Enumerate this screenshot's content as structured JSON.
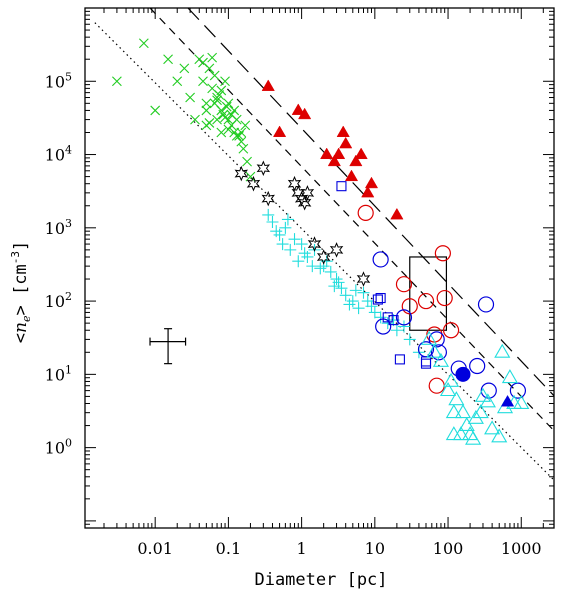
{
  "chart_data": {
    "type": "scatter",
    "title": "",
    "xlabel": "Diameter [pc]",
    "ylabel": {
      "prefix": "<",
      "symbol": "n",
      "subscript": "e",
      "suffix": ">",
      "units": "[cm",
      "exponent": "-3",
      "units_close": "]"
    },
    "xscale": "log",
    "yscale": "log",
    "xlim": [
      0.0011,
      2800
    ],
    "ylim": [
      0.08,
      1000000
    ],
    "x_ticks": [
      {
        "value": 0.01,
        "label": "0.01"
      },
      {
        "value": 0.1,
        "label": "0.1"
      },
      {
        "value": 1,
        "label": "1"
      },
      {
        "value": 10,
        "label": "10"
      },
      {
        "value": 100,
        "label": "100"
      },
      {
        "value": 1000,
        "label": "1000"
      }
    ],
    "y_ticks": [
      {
        "value": 1,
        "base": "10",
        "exp": "0"
      },
      {
        "value": 10,
        "base": "10",
        "exp": "1"
      },
      {
        "value": 100,
        "base": "10",
        "exp": "2"
      },
      {
        "value": 1000,
        "base": "10",
        "exp": "3"
      },
      {
        "value": 10000,
        "base": "10",
        "exp": "4"
      },
      {
        "value": 100000,
        "base": "10",
        "exp": "5"
      }
    ],
    "lines": [
      {
        "style": "long-dash",
        "points": [
          [
            0.028,
            1000000
          ],
          [
            2800,
            5.1
          ]
        ]
      },
      {
        "style": "dash",
        "points": [
          [
            0.0085,
            1000000
          ],
          [
            2800,
            1.7
          ]
        ]
      },
      {
        "style": "dotted",
        "points": [
          [
            0.0015,
            630000
          ],
          [
            2800,
            0.36
          ]
        ]
      }
    ],
    "box": {
      "x": [
        30,
        95
      ],
      "y": [
        40,
        400
      ]
    },
    "error_bar": {
      "x": 0.015,
      "y": 28,
      "x_range": [
        0.0085,
        0.026
      ],
      "y_range": [
        14,
        42
      ]
    },
    "series": [
      {
        "marker": "x",
        "color": "#22cc22",
        "points": [
          [
            0.003,
            100000
          ],
          [
            0.007,
            330000
          ],
          [
            0.01,
            40000
          ],
          [
            0.015,
            200000
          ],
          [
            0.02,
            100000
          ],
          [
            0.025,
            150000
          ],
          [
            0.03,
            60000
          ],
          [
            0.035,
            30000
          ],
          [
            0.04,
            200000
          ],
          [
            0.045,
            100000
          ],
          [
            0.05,
            40000
          ],
          [
            0.05,
            25000
          ],
          [
            0.055,
            150000
          ],
          [
            0.06,
            80000
          ],
          [
            0.065,
            50000
          ],
          [
            0.07,
            60000
          ],
          [
            0.07,
            30000
          ],
          [
            0.08,
            40000
          ],
          [
            0.08,
            20000
          ],
          [
            0.09,
            100000
          ],
          [
            0.1,
            50000
          ],
          [
            0.1,
            30000
          ],
          [
            0.11,
            25000
          ],
          [
            0.12,
            40000
          ],
          [
            0.13,
            30000
          ],
          [
            0.15,
            20000
          ],
          [
            0.15,
            15000
          ],
          [
            0.17,
            25000
          ],
          [
            0.18,
            8000
          ],
          [
            0.06,
            210000
          ],
          [
            0.045,
            180000
          ],
          [
            0.07,
            55000
          ],
          [
            0.085,
            35000
          ],
          [
            0.095,
            45000
          ],
          [
            0.12,
            20000
          ],
          [
            0.14,
            18000
          ],
          [
            0.16,
            12000
          ],
          [
            0.2,
            5000
          ],
          [
            0.1,
            22000
          ],
          [
            0.055,
            27000
          ],
          [
            0.075,
            65000
          ],
          [
            0.065,
            120000
          ],
          [
            0.09,
            32000
          ],
          [
            0.11,
            35000
          ],
          [
            0.05,
            50000
          ],
          [
            0.08,
            75000
          ],
          [
            0.13,
            18000
          ]
        ]
      },
      {
        "marker": "plus",
        "color": "#22dddd",
        "points": [
          [
            0.35,
            1500
          ],
          [
            0.4,
            1200
          ],
          [
            0.5,
            800
          ],
          [
            0.6,
            1000
          ],
          [
            0.7,
            500
          ],
          [
            0.8,
            700
          ],
          [
            1,
            600
          ],
          [
            1.2,
            400
          ],
          [
            1.5,
            500
          ],
          [
            2,
            300
          ],
          [
            2.5,
            250
          ],
          [
            3,
            200
          ],
          [
            3.5,
            150
          ],
          [
            4,
            120
          ],
          [
            5,
            100
          ],
          [
            6,
            80
          ],
          [
            8,
            100
          ],
          [
            10,
            70
          ],
          [
            15,
            50
          ],
          [
            20,
            40
          ],
          [
            25,
            45
          ],
          [
            30,
            30
          ],
          [
            40,
            20
          ],
          [
            0.45,
            900
          ],
          [
            0.55,
            600
          ],
          [
            0.9,
            350
          ],
          [
            1.1,
            450
          ],
          [
            1.8,
            280
          ],
          [
            2.2,
            350
          ],
          [
            3.2,
            180
          ],
          [
            4.5,
            90
          ],
          [
            7,
            130
          ],
          [
            12,
            60
          ],
          [
            18,
            55
          ],
          [
            0.65,
            1300
          ],
          [
            1.4,
            300
          ],
          [
            2.8,
            160
          ],
          [
            5.5,
            140
          ],
          [
            9,
            85
          ]
        ]
      },
      {
        "marker": "star",
        "color": "#000000",
        "points": [
          [
            0.15,
            5500
          ],
          [
            0.22,
            4000
          ],
          [
            0.3,
            6500
          ],
          [
            0.35,
            2500
          ],
          [
            0.8,
            4000
          ],
          [
            0.9,
            3000
          ],
          [
            1,
            2500
          ],
          [
            1.1,
            2200
          ],
          [
            1.2,
            3000
          ],
          [
            1.5,
            600
          ],
          [
            2,
            400
          ],
          [
            3,
            500
          ],
          [
            7,
            200
          ]
        ]
      },
      {
        "marker": "filled-triangle",
        "color": "#dd0000",
        "points": [
          [
            0.35,
            85000
          ],
          [
            0.5,
            20000
          ],
          [
            0.9,
            40000
          ],
          [
            1.1,
            35000
          ],
          [
            2.2,
            10000
          ],
          [
            2.8,
            8000
          ],
          [
            3.2,
            10000
          ],
          [
            3.7,
            20000
          ],
          [
            4,
            14000
          ],
          [
            4.8,
            5000
          ],
          [
            5.5,
            8000
          ],
          [
            6.5,
            10000
          ],
          [
            8,
            3000
          ],
          [
            9,
            4000
          ],
          [
            20,
            1500
          ]
        ]
      },
      {
        "marker": "open-circle",
        "color": "#dd0000",
        "points": [
          [
            7.5,
            1600
          ],
          [
            25,
            170
          ],
          [
            30,
            85
          ],
          [
            50,
            100
          ],
          [
            65,
            35
          ],
          [
            70,
            7
          ],
          [
            85,
            450
          ],
          [
            90,
            110
          ],
          [
            110,
            40
          ]
        ]
      },
      {
        "marker": "open-circle",
        "color": "#0000dd",
        "points": [
          [
            12,
            370
          ],
          [
            13,
            45
          ],
          [
            25,
            60
          ],
          [
            50,
            22
          ],
          [
            70,
            30
          ],
          [
            75,
            20
          ],
          [
            140,
            12
          ],
          [
            250,
            13
          ],
          [
            330,
            90
          ],
          [
            360,
            6
          ],
          [
            900,
            6
          ]
        ]
      },
      {
        "marker": "filled-circle",
        "color": "#0000dd",
        "points": [
          [
            160,
            10
          ]
        ]
      },
      {
        "marker": "open-square",
        "color": "#0000dd",
        "points": [
          [
            3.5,
            3700
          ],
          [
            11,
            105
          ],
          [
            12,
            110
          ],
          [
            15,
            60
          ],
          [
            18,
            55
          ],
          [
            22,
            16
          ],
          [
            50,
            15
          ],
          [
            50,
            14
          ]
        ]
      },
      {
        "marker": "open-triangle",
        "color": "#22dddd",
        "points": [
          [
            55,
            30
          ],
          [
            65,
            20
          ],
          [
            80,
            15
          ],
          [
            100,
            6
          ],
          [
            110,
            8
          ],
          [
            120,
            3
          ],
          [
            130,
            4.5
          ],
          [
            150,
            1.5
          ],
          [
            160,
            3
          ],
          [
            180,
            2
          ],
          [
            200,
            1.5
          ],
          [
            220,
            1.3
          ],
          [
            240,
            2.5
          ],
          [
            280,
            3
          ],
          [
            300,
            5
          ],
          [
            350,
            4.2
          ],
          [
            400,
            1.8
          ],
          [
            500,
            1.4
          ],
          [
            600,
            3.5
          ],
          [
            700,
            9
          ],
          [
            800,
            4
          ],
          [
            1000,
            4
          ],
          [
            120,
            1.5
          ],
          [
            550,
            20
          ]
        ]
      },
      {
        "marker": "filled-triangle",
        "color": "#0000dd",
        "points": [
          [
            650,
            4.2
          ]
        ]
      }
    ]
  }
}
